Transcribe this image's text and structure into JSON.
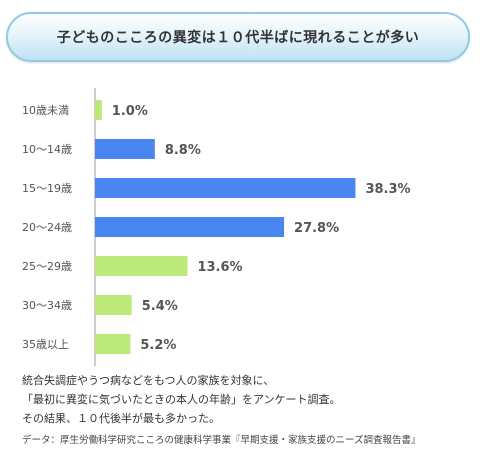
{
  "title": "子どものこころの異変は１０代半ばに現れることが多い",
  "colors": {
    "blue": "#4a86f0",
    "green": "#bde87a",
    "axis": "#999999",
    "label": "#555555"
  },
  "chart_data": {
    "type": "bar",
    "orientation": "horizontal",
    "xlim": [
      0,
      40
    ],
    "categories": [
      "10歳未満",
      "10〜14歳",
      "15〜19歳",
      "20〜24歳",
      "25〜29歳",
      "30〜34歳",
      "35歳以上"
    ],
    "values": [
      1.0,
      8.8,
      38.3,
      27.8,
      13.6,
      5.4,
      5.2
    ],
    "value_labels": [
      "1.0%",
      "8.8%",
      "38.3%",
      "27.8%",
      "13.6%",
      "5.4%",
      "5.2%"
    ],
    "bar_colors": [
      "green",
      "blue",
      "blue",
      "blue",
      "green",
      "green",
      "green"
    ]
  },
  "notes": {
    "line1": "統合失調症やうつ病などをもつ人の家族を対象に、",
    "line2": "「最初に異変に気づいたときの本人の年齢」をアンケート調査。",
    "line3": "その結果、１０代後半が最も多かった。",
    "source": "データ：厚生労働科学研究こころの健康科学事業『早期支援・家族支援のニーズ調査報告書』"
  }
}
